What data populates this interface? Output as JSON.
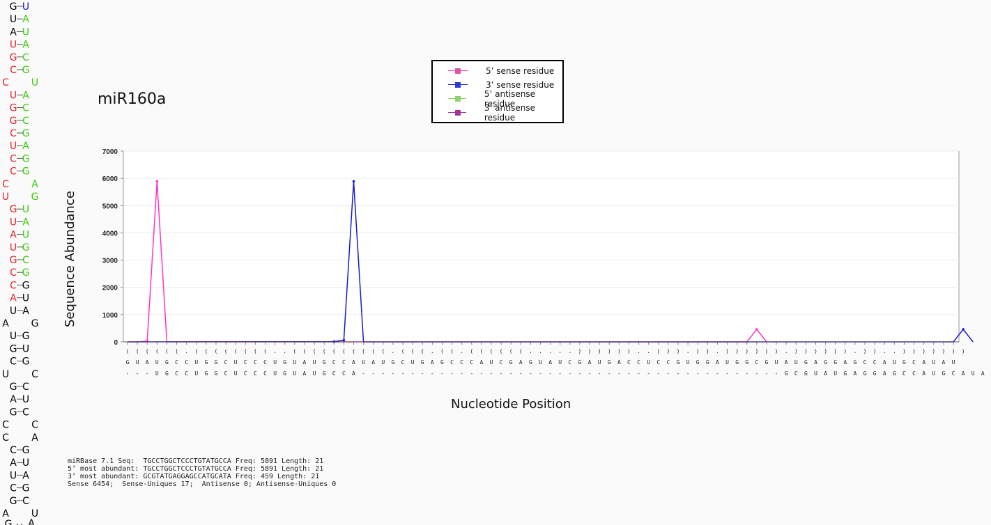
{
  "title": "miR160a",
  "legend": [
    {
      "label": "5’ sense residue",
      "color": "#ff33cc",
      "marker": "#e0559f"
    },
    {
      "label": "3’ sense residue",
      "color": "#1a1acc",
      "marker": "#2b3dd6"
    },
    {
      "label": "5’ antisense residue",
      "color": "#8fd46b",
      "marker": "#8fd46b"
    },
    {
      "label": "3’ antisense residue",
      "color": "#993399",
      "marker": "#a5349a"
    }
  ],
  "info_lines": [
    "miRBase 7.1 Seq:  TGCCTGGCTCCCTGTATGCCA Freq: 5891 Length: 21",
    "5’ most abundant: TGCCTGGCTCCCTGTATGCCA Freq: 5891 Length: 21",
    "3’ most abundant: GCGTATGAGGAGCCATGCATA Freq: 459 Length: 21",
    "Sense 6454;  Sense-Uniques 17;  Antisense 0; Antisense-Uniques 0"
  ],
  "hairpin": {
    "rows": [
      {
        "l": "G",
        "r": "U",
        "lc": "#000",
        "rc": "#1a1acc",
        "bond": true
      },
      {
        "l": "U",
        "r": "A",
        "lc": "#000",
        "rc": "#33cc00",
        "bond": true
      },
      {
        "l": "A",
        "r": "U",
        "lc": "#000",
        "rc": "#33cc00",
        "bond": true
      },
      {
        "l": "U",
        "r": "A",
        "lc": "#e8202a",
        "rc": "#33cc00",
        "bond": true
      },
      {
        "l": "G",
        "r": "C",
        "lc": "#e8202a",
        "rc": "#33cc00",
        "bond": true
      },
      {
        "l": "C",
        "r": "G",
        "lc": "#e8202a",
        "rc": "#33cc00",
        "bond": true
      },
      {
        "l": "C",
        "r": "U",
        "lc": "#e8202a",
        "rc": "#33cc00",
        "bond": false
      },
      {
        "l": "U",
        "r": "A",
        "lc": "#e8202a",
        "rc": "#33cc00",
        "bond": true
      },
      {
        "l": "G",
        "r": "C",
        "lc": "#e8202a",
        "rc": "#33cc00",
        "bond": true
      },
      {
        "l": "G",
        "r": "C",
        "lc": "#e8202a",
        "rc": "#33cc00",
        "bond": true
      },
      {
        "l": "C",
        "r": "G",
        "lc": "#e8202a",
        "rc": "#33cc00",
        "bond": true
      },
      {
        "l": "U",
        "r": "A",
        "lc": "#e8202a",
        "rc": "#33cc00",
        "bond": true
      },
      {
        "l": "C",
        "r": "G",
        "lc": "#e8202a",
        "rc": "#33cc00",
        "bond": true
      },
      {
        "l": "C",
        "r": "G",
        "lc": "#e8202a",
        "rc": "#33cc00",
        "bond": true
      },
      {
        "l": "C",
        "r": "A",
        "lc": "#e8202a",
        "rc": "#33cc00",
        "bond": false
      },
      {
        "l": "U",
        "r": "G",
        "lc": "#e8202a",
        "rc": "#33cc00",
        "bond": false
      },
      {
        "l": "G",
        "r": "U",
        "lc": "#e8202a",
        "rc": "#33cc00",
        "bond": true
      },
      {
        "l": "U",
        "r": "A",
        "lc": "#e8202a",
        "rc": "#33cc00",
        "bond": true
      },
      {
        "l": "A",
        "r": "U",
        "lc": "#e8202a",
        "rc": "#33cc00",
        "bond": true
      },
      {
        "l": "U",
        "r": "G",
        "lc": "#e8202a",
        "rc": "#33cc00",
        "bond": true
      },
      {
        "l": "G",
        "r": "C",
        "lc": "#e8202a",
        "rc": "#33cc00",
        "bond": true
      },
      {
        "l": "C",
        "r": "G",
        "lc": "#e8202a",
        "rc": "#33cc00",
        "bond": true
      },
      {
        "l": "C",
        "r": "G",
        "lc": "#e8202a",
        "rc": "#000",
        "bond": true
      },
      {
        "l": "A",
        "r": "U",
        "lc": "#e8202a",
        "rc": "#000",
        "bond": true
      },
      {
        "l": "U",
        "r": "A",
        "lc": "#000",
        "rc": "#000",
        "bond": true
      },
      {
        "l": "A",
        "r": "G",
        "lc": "#000",
        "rc": "#000",
        "bond": false
      },
      {
        "l": "U",
        "r": "G",
        "lc": "#000",
        "rc": "#000",
        "bond": true
      },
      {
        "l": "G",
        "r": "U",
        "lc": "#000",
        "rc": "#000",
        "bond": true
      },
      {
        "l": "C",
        "r": "G",
        "lc": "#000",
        "rc": "#000",
        "bond": true
      },
      {
        "l": "U",
        "r": "C",
        "lc": "#000",
        "rc": "#000",
        "bond": false
      },
      {
        "l": "G",
        "r": "C",
        "lc": "#000",
        "rc": "#000",
        "bond": true
      },
      {
        "l": "A",
        "r": "U",
        "lc": "#000",
        "rc": "#000",
        "bond": true
      },
      {
        "l": "G",
        "r": "C",
        "lc": "#000",
        "rc": "#000",
        "bond": true
      },
      {
        "l": "C",
        "r": "C",
        "lc": "#000",
        "rc": "#000",
        "bond": false
      },
      {
        "l": "C",
        "r": "A",
        "lc": "#000",
        "rc": "#000",
        "bond": false
      },
      {
        "l": "C",
        "r": "G",
        "lc": "#000",
        "rc": "#000",
        "bond": true
      },
      {
        "l": "A",
        "r": "U",
        "lc": "#000",
        "rc": "#000",
        "bond": true
      },
      {
        "l": "U",
        "r": "A",
        "lc": "#000",
        "rc": "#000",
        "bond": true
      },
      {
        "l": "C",
        "r": "G",
        "lc": "#000",
        "rc": "#000",
        "bond": true
      },
      {
        "l": "G",
        "r": "C",
        "lc": "#000",
        "rc": "#000",
        "bond": true
      },
      {
        "l": "A",
        "r": "U",
        "lc": "#000",
        "rc": "#000",
        "bond": false
      }
    ],
    "loop": [
      "G",
      "U",
      "A"
    ]
  },
  "chart_data": {
    "type": "line",
    "xlabel": "Nucleotide Position",
    "ylabel": "Sequence Abundance",
    "ylim": [
      0,
      7000
    ],
    "yticks": [
      0,
      1000,
      2000,
      3000,
      4000,
      5000,
      6000,
      7000
    ],
    "grid": true,
    "legend_position": "top-center",
    "structure": "((((((.((((((((..((((((((((.(((.((.((((((.....))))))..))).)).)))))).)))))).))..)))))))",
    "sequence": "GUAUGCCUGGCUCCCUGUAUGCCAUAUGCUGAGCCCAUCGAGUAUCGAUGACCUCCGUGGAUGGCGUAUGAGGAGCCAUGCAUAU",
    "reads_5p": "---UGCCUGGCUCCCUGUAUGCCA-------------------------------------------GCGUAUGAGGAGCCAUGCAUA-",
    "series": [
      {
        "name": "5’ sense residue",
        "color": "#ff33cc",
        "points": [
          [
            1,
            0
          ],
          [
            2,
            0
          ],
          [
            3,
            30
          ],
          [
            4,
            5891
          ],
          [
            5,
            0
          ],
          [
            64,
            0
          ],
          [
            65,
            459
          ],
          [
            66,
            0
          ]
        ]
      },
      {
        "name": "3’ sense residue",
        "color": "#1a1acc",
        "points": [
          [
            1,
            0
          ],
          [
            22,
            10
          ],
          [
            23,
            60
          ],
          [
            24,
            5891
          ],
          [
            25,
            0
          ],
          [
            85,
            0
          ],
          [
            86,
            459
          ],
          [
            87,
            0
          ]
        ]
      },
      {
        "name": "5’ antisense residue",
        "color": "#8fd46b",
        "points": []
      },
      {
        "name": "3’ antisense residue",
        "color": "#993399",
        "points": []
      }
    ]
  }
}
